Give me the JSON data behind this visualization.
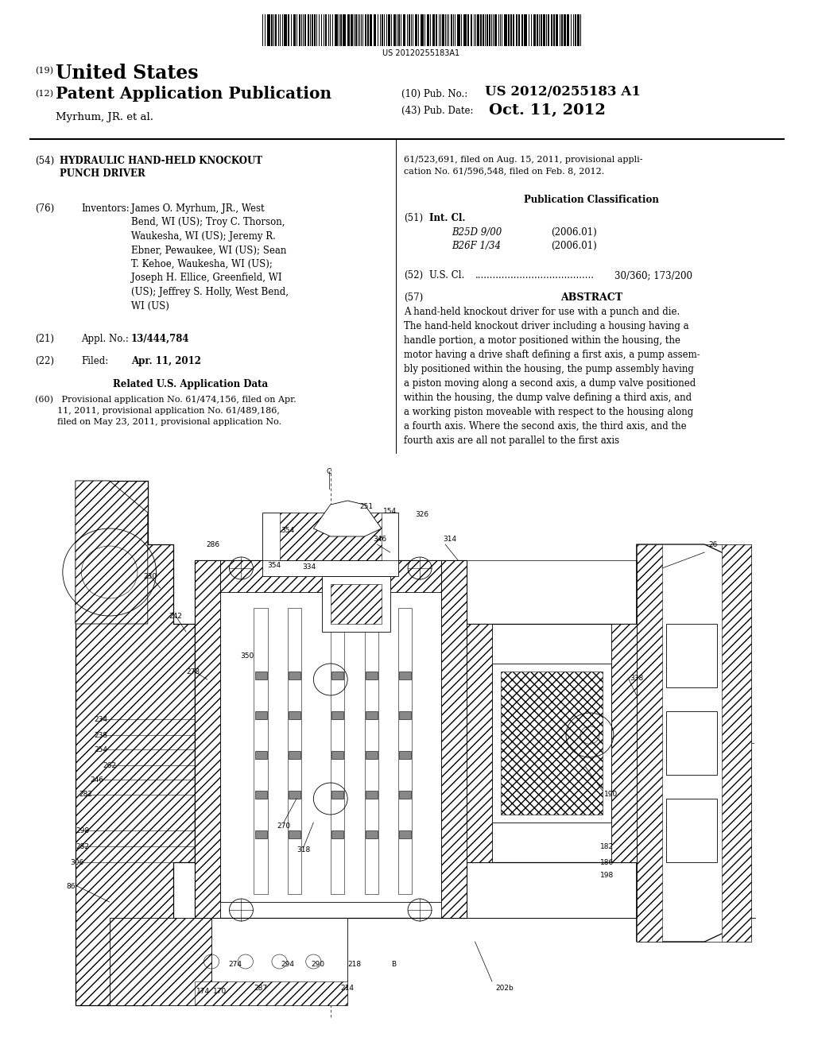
{
  "background_color": "#ffffff",
  "page_width": 10.24,
  "page_height": 13.2,
  "text_color": "#000000",
  "barcode_text": "US 20120255183A1",
  "country_label": "(19)",
  "country_text": "United States",
  "pub_type_label": "(12)",
  "pub_type_text": "Patent Application Publication",
  "inventor_line": "Myrhum, JR. et al.",
  "pub_no_label": "(10) Pub. No.:",
  "pub_no_value": "US 2012/0255183 A1",
  "pub_date_label": "(43) Pub. Date:",
  "pub_date_value": "Oct. 11, 2012",
  "title_line1": "HYDRAULIC HAND-HELD KNOCKOUT",
  "title_line2": "PUNCH DRIVER",
  "inventors_label_text": "Inventors:",
  "inventors_body": "James O. Myrhum, JR., West\nBend, WI (US); Troy C. Thorson,\nWaukesha, WI (US); Jeremy R.\nEbner, Pewaukee, WI (US); Sean\nT. Kehoe, Waukesha, WI (US);\nJoseph H. Ellice, Greenfield, WI\n(US); Jeffrey S. Holly, West Bend,\nWI (US)",
  "appl_no_value": "13/444,784",
  "filed_value": "Apr. 11, 2012",
  "related_title": "Related U.S. Application Data",
  "related_body": "(60)   Provisional application No. 61/474,156, filed on Apr.\n        11, 2011, provisional application No. 61/489,186,\n        filed on May 23, 2011, provisional application No.",
  "right_cont": "61/523,691, filed on Aug. 15, 2011, provisional appli-\ncation No. 61/596,548, filed on Feb. 8, 2012.",
  "pub_class_title": "Publication Classification",
  "int_cl_label": "(51)  Int. Cl.",
  "int_cl_1_name": "B25D 9/00",
  "int_cl_1_date": "(2006.01)",
  "int_cl_2_name": "B26F 1/34",
  "int_cl_2_date": "(2006.01)",
  "us_cl_text": "(52)   U.S. Cl.  ........................................  30/360; 173/200",
  "abstract_title": "ABSTRACT",
  "abstract_body": "A hand-held knockout driver for use with a punch and die.\nThe hand-held knockout driver including a housing having a\nhandle portion, a motor positioned within the housing, the\nmotor having a drive shaft defining a first axis, a pump assem-\nbly positioned within the housing, the pump assembly having\na piston moving along a second axis, a dump valve positioned\nwithin the housing, the dump valve defining a third axis, and\na working piston moveable with respect to the housing along\na fourth axis. Where the second axis, the third axis, and the\nfourth axis are all not parallel to the first axis"
}
